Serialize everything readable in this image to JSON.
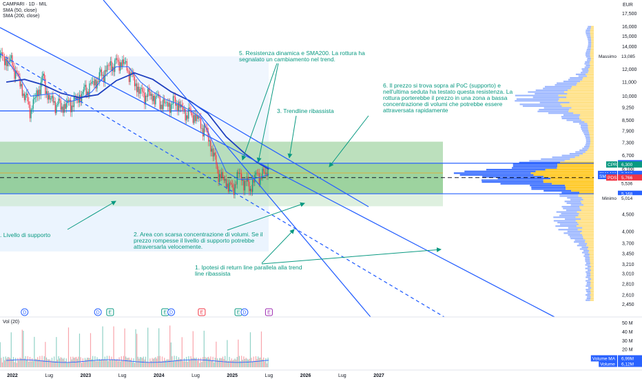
{
  "header": {
    "symbol_line": "CAMPARI · 1D · MIL",
    "sma50_label": "SMA (50, close)",
    "sma200_label": "SMA (200, close)",
    "currency": "EUR"
  },
  "annotations": {
    "a5": "5. Resistenza dinamica e SMA200. La rottura ha\nsegnalato un cambiamento nel trend.",
    "a6": "6. Il prezzo si trova sopra al PoC (supporto) e\nnell'ultima seduta ha testato questa resistenza. La\nrottura porterebbe il prezzo in una zona a bassa\nconcentrazione di volumi che potrebbe essere\nattraversata rapidamente",
    "a3": "3. Trendline ribassista",
    "a_support": ". Livello di supporto",
    "a2": "2. Area con scarsa concentrazione di volumi. Se il\nprezzo rompesse il livello di supporto potrebbe\nattraversarla velocemente.",
    "a1": "1. Ipotesi di return line parallela alla trend\nline ribassista"
  },
  "volume_pane": {
    "label": "Vol (20)"
  },
  "colors": {
    "up": "#089981",
    "down": "#f23645",
    "trendline": "#2962ff",
    "zone_green": "#4caf50",
    "zone_blue": "#e3effd",
    "vp_blue": "#2962ff",
    "vp_yellow": "#ffc107"
  },
  "event_markers": [
    {
      "label": "D",
      "color": "#2962ff",
      "date": "2022-03"
    },
    {
      "label": "D",
      "color": "#2962ff",
      "date": "2023-03"
    },
    {
      "label": "E",
      "color": "#089981",
      "date": "2023-05"
    },
    {
      "label": "E",
      "color": "#089981",
      "date": "2024-02"
    },
    {
      "label": "D",
      "color": "#2962ff",
      "date": "2024-03"
    },
    {
      "label": "E",
      "color": "#f23645",
      "date": "2024-08"
    },
    {
      "label": "E",
      "color": "#089981",
      "date": "2025-02"
    },
    {
      "label": "D",
      "color": "#2962ff",
      "date": "2025-03"
    },
    {
      "label": "E",
      "color": "#9c27b0",
      "date": "2025-07"
    }
  ],
  "chart_data": {
    "type": "candlestick",
    "scale": "log",
    "x_ticks": [
      "2022",
      "Lug",
      "2023",
      "Lug",
      "2024",
      "Lug",
      "2025",
      "Lug",
      "2026",
      "Lug",
      "2027"
    ],
    "y_ticks": [
      2.45,
      2.61,
      2.81,
      3.01,
      3.21,
      3.45,
      3.7,
      4.0,
      4.5,
      5.014,
      5.536,
      6.1,
      6.7,
      7.3,
      7.9,
      8.5,
      9.25,
      10.0,
      11.0,
      12.0,
      13.0,
      14.0,
      15.0,
      16.0,
      17.5
    ],
    "y_tick_text": [
      "2,450",
      "2,610",
      "2,810",
      "3,010",
      "3,210",
      "3,450",
      "3,700",
      "4,000",
      "4,500",
      "5,014",
      "5,536",
      "6,100",
      "6,700",
      "7,300",
      "7,900",
      "8,500",
      "9,250",
      "10,000",
      "11,000",
      "12,000",
      "13,000",
      "14,000",
      "15,000",
      "16,000",
      "17,500"
    ],
    "ylim": [
      2.3,
      18.8
    ],
    "price_path": [
      [
        "2021-11",
        13.0
      ],
      [
        "2022-01",
        12.5
      ],
      [
        "2022-03",
        10.0
      ],
      [
        "2022-04",
        9.1
      ],
      [
        "2022-06",
        11.3
      ],
      [
        "2022-07",
        9.8
      ],
      [
        "2022-09",
        9.3
      ],
      [
        "2022-11",
        9.6
      ],
      [
        "2023-01",
        10.4
      ],
      [
        "2023-03",
        11.2
      ],
      [
        "2023-05",
        12.3
      ],
      [
        "2023-07",
        12.6
      ],
      [
        "2023-08",
        11.9
      ],
      [
        "2023-10",
        10.2
      ],
      [
        "2023-12",
        10.0
      ],
      [
        "2024-02",
        9.4
      ],
      [
        "2024-04",
        9.6
      ],
      [
        "2024-05",
        9.0
      ],
      [
        "2024-07",
        8.7
      ],
      [
        "2024-08",
        8.2
      ],
      [
        "2024-09",
        7.7
      ],
      [
        "2024-10",
        6.6
      ],
      [
        "2024-11",
        5.8
      ],
      [
        "2024-12",
        5.6
      ],
      [
        "2025-01",
        5.3
      ],
      [
        "2025-02",
        5.9
      ],
      [
        "2025-03",
        5.6
      ],
      [
        "2025-04",
        5.4
      ],
      [
        "2025-05",
        5.9
      ],
      [
        "2025-06",
        5.8
      ],
      [
        "2025-07",
        6.2
      ]
    ],
    "sma50_path": [
      [
        "2021-12",
        12.8
      ],
      [
        "2022-02",
        11.5
      ],
      [
        "2022-04",
        10.0
      ],
      [
        "2022-06",
        10.1
      ],
      [
        "2022-08",
        10.2
      ],
      [
        "2022-10",
        9.6
      ],
      [
        "2022-12",
        9.8
      ],
      [
        "2023-02",
        10.3
      ],
      [
        "2023-04",
        11.4
      ],
      [
        "2023-06",
        12.2
      ],
      [
        "2023-08",
        12.2
      ],
      [
        "2023-10",
        11.0
      ],
      [
        "2023-12",
        10.3
      ],
      [
        "2024-02",
        9.8
      ],
      [
        "2024-04",
        9.5
      ],
      [
        "2024-06",
        9.1
      ],
      [
        "2024-08",
        8.6
      ],
      [
        "2024-10",
        7.2
      ],
      [
        "2024-12",
        6.0
      ],
      [
        "2025-02",
        5.7
      ],
      [
        "2025-04",
        5.7
      ],
      [
        "2025-06",
        5.8
      ],
      [
        "2025-07",
        5.9
      ]
    ],
    "sma200_path": [
      [
        "2021-12",
        11.0
      ],
      [
        "2022-03",
        11.2
      ],
      [
        "2022-06",
        10.8
      ],
      [
        "2022-09",
        10.2
      ],
      [
        "2022-12",
        9.9
      ],
      [
        "2023-03",
        10.1
      ],
      [
        "2023-06",
        11.1
      ],
      [
        "2023-09",
        11.7
      ],
      [
        "2023-12",
        11.2
      ],
      [
        "2024-03",
        10.3
      ],
      [
        "2024-06",
        9.7
      ],
      [
        "2024-09",
        8.9
      ],
      [
        "2024-12",
        7.6
      ],
      [
        "2025-03",
        6.8
      ],
      [
        "2025-05",
        6.4
      ],
      [
        "2025-07",
        6.1
      ]
    ],
    "price_labels": [
      {
        "text": "Massimo",
        "value": "13,085",
        "price": 13.085,
        "kind": "plain"
      },
      {
        "text": "",
        "value": "6,354",
        "price": 6.354,
        "kind": "blue"
      },
      {
        "text": "CPR",
        "value": "6,300",
        "price": 6.3,
        "kind": "green"
      },
      {
        "text": "SMA MA",
        "value": "5,912",
        "price": 5.912,
        "kind": "blue"
      },
      {
        "text": "SMA MA",
        "value": "5,826",
        "price": 5.826,
        "kind": "blue"
      },
      {
        "text": "PDS",
        "value": "5,766",
        "price": 5.766,
        "kind": "red"
      },
      {
        "text": "",
        "value": "5,536",
        "price": 5.536,
        "kind": "plain"
      },
      {
        "text": "",
        "value": "5,168",
        "price": 5.168,
        "kind": "blue"
      },
      {
        "text": "Minimo",
        "value": "5,014",
        "price": 5.014,
        "kind": "plain"
      }
    ],
    "volume_axis": [
      "50 M",
      "40 M",
      "30 M",
      "20 M",
      "10 M"
    ],
    "volume_axis_values": [
      50,
      40,
      30,
      20,
      10
    ],
    "volume_labels": [
      {
        "text": "Volume MA",
        "value": "6,99M"
      },
      {
        "text": "Volume",
        "value": "6,12M"
      }
    ]
  }
}
